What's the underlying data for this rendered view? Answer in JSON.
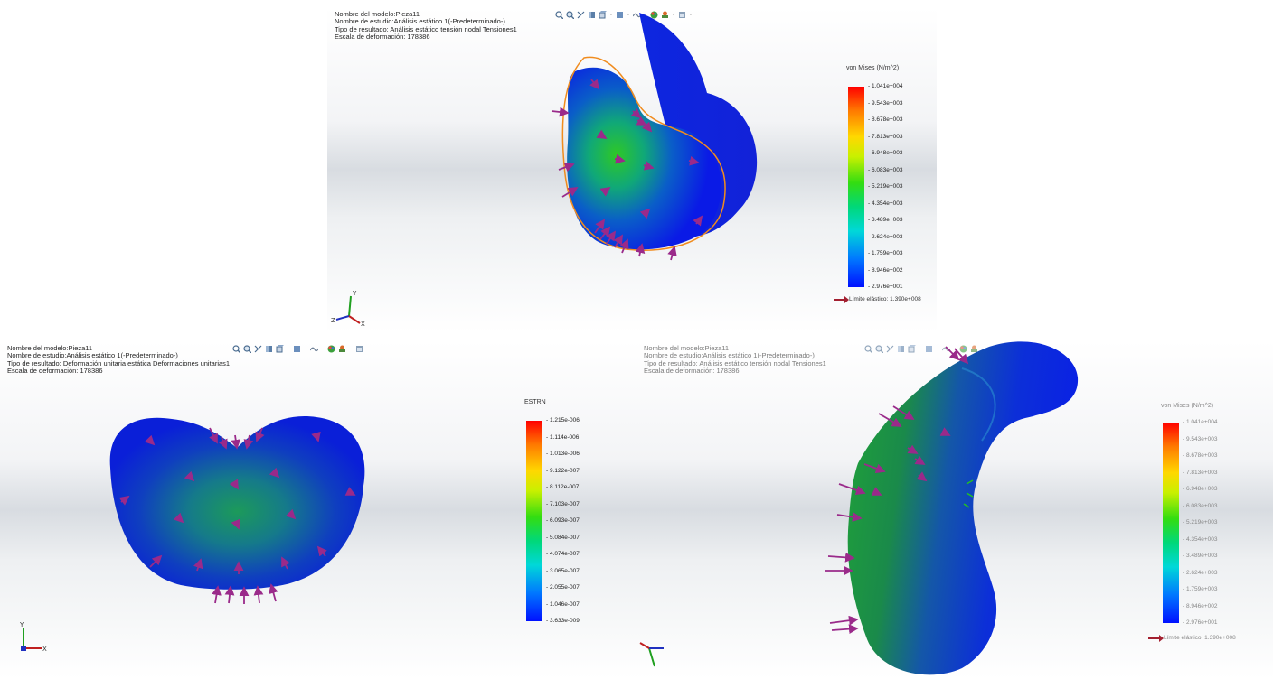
{
  "panels": {
    "p1": {
      "info": {
        "model_name": "Nombre del modelo:Pieza11",
        "study_name": "Nombre de estudio:Análisis estático 1(-Predeterminado-)",
        "result_type": "Tipo de resultado: Análisis estático tensión nodal Tensiones1",
        "deformation_scale": "Escala de deformación: 178386"
      },
      "legend": {
        "title": "von Mises (N/m^2)",
        "ticks": [
          "1.041e+004",
          "9.543e+003",
          "8.678e+003",
          "7.813e+003",
          "6.948e+003",
          "6.083e+003",
          "5.219e+003",
          "4.354e+003",
          "3.489e+003",
          "2.624e+003",
          "1.759e+003",
          "8.946e+002",
          "2.976e+001"
        ],
        "yield": "Límite elástico: 1.390e+008"
      },
      "triad": {
        "y": "Y",
        "z": "Z",
        "x": "X"
      }
    },
    "p2": {
      "info": {
        "model_name": "Nombre del modelo:Pieza11",
        "study_name": "Nombre de estudio:Análisis estático 1(-Predeterminado-)",
        "result_type": "Tipo de resultado: Deformación unitaria estática Deformaciones unitarias1",
        "deformation_scale": "Escala de deformación: 178386"
      },
      "legend": {
        "title": "ESTRN",
        "ticks": [
          "1.215e-006",
          "1.114e-006",
          "1.013e-006",
          "9.122e-007",
          "8.112e-007",
          "7.103e-007",
          "6.093e-007",
          "5.084e-007",
          "4.074e-007",
          "3.065e-007",
          "2.055e-007",
          "1.046e-007",
          "3.633e-009"
        ]
      },
      "triad": {
        "y": "Y",
        "x": "X"
      }
    },
    "p3": {
      "info": {
        "model_name": "Nombre del modelo:Pieza11",
        "study_name": "Nombre de estudio:Análisis estático 1(-Predeterminado-)",
        "result_type": "Tipo de resultado: Análisis estático tensión nodal Tensiones1",
        "deformation_scale": "Escala de deformación: 178386"
      },
      "legend": {
        "title": "von Mises (N/m^2)",
        "ticks": [
          "1.041e+004",
          "9.543e+003",
          "8.678e+003",
          "7.813e+003",
          "6.948e+003",
          "6.083e+003",
          "5.219e+003",
          "4.354e+003",
          "3.489e+003",
          "2.624e+003",
          "1.759e+003",
          "8.946e+002",
          "2.976e+001"
        ],
        "yield": "Límite elástico: 1.390e+008"
      }
    }
  },
  "toolbar_icons": [
    "zoom-to-fit-icon",
    "zoom-to-area-icon",
    "previous-view-icon",
    "section-view-icon",
    "view-orientation-icon",
    "display-style-icon",
    "hide-show-icon",
    "edit-appearance-icon",
    "apply-scene-icon",
    "view-settings-icon"
  ],
  "colors": {
    "accent": "#0010ff",
    "max": "#ff0000",
    "arrow": "#9a2a8a",
    "yield_arrow": "#a32030",
    "outline": "#f08c1e"
  }
}
